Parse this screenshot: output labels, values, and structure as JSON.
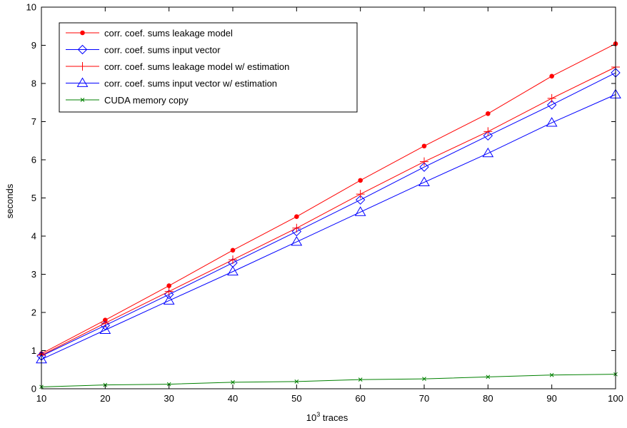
{
  "chart_data": {
    "type": "line",
    "title": "",
    "xlabel_base": "10",
    "xlabel_exp": "3",
    "xlabel_rest": " traces",
    "ylabel": "seconds",
    "xlim": [
      10,
      100
    ],
    "ylim": [
      0,
      10
    ],
    "xticks": [
      10,
      20,
      30,
      40,
      50,
      60,
      70,
      80,
      90,
      100
    ],
    "yticks": [
      0,
      1,
      2,
      3,
      4,
      5,
      6,
      7,
      8,
      9,
      10
    ],
    "grid": false,
    "legend_position": "top-left",
    "x": [
      10,
      20,
      30,
      40,
      50,
      60,
      70,
      80,
      90,
      100
    ],
    "series": [
      {
        "name": "corr. coef. sums leakage model",
        "color": "#ff0000",
        "marker": "dot",
        "values": [
          0.92,
          1.8,
          2.7,
          3.63,
          4.51,
          5.46,
          6.36,
          7.21,
          8.19,
          9.04
        ]
      },
      {
        "name": "corr. coef. sums input vector",
        "color": "#0000ff",
        "marker": "diamond",
        "values": [
          0.86,
          1.66,
          2.47,
          3.3,
          4.12,
          4.95,
          5.81,
          6.63,
          7.44,
          8.28
        ]
      },
      {
        "name": "corr. coef. sums leakage model w/ estimation",
        "color": "#ff0000",
        "marker": "plus",
        "values": [
          0.88,
          1.72,
          2.55,
          3.38,
          4.21,
          5.1,
          5.95,
          6.74,
          7.61,
          8.43
        ]
      },
      {
        "name": "corr. coef. sums input vector w/ estimation",
        "color": "#0000ff",
        "marker": "triangle",
        "values": [
          0.77,
          1.54,
          2.31,
          3.07,
          3.85,
          4.63,
          5.41,
          6.17,
          6.97,
          7.71
        ]
      },
      {
        "name": "CUDA memory copy",
        "color": "#008000",
        "marker": "x",
        "values": [
          0.05,
          0.1,
          0.12,
          0.17,
          0.19,
          0.24,
          0.26,
          0.31,
          0.36,
          0.38
        ]
      }
    ]
  }
}
